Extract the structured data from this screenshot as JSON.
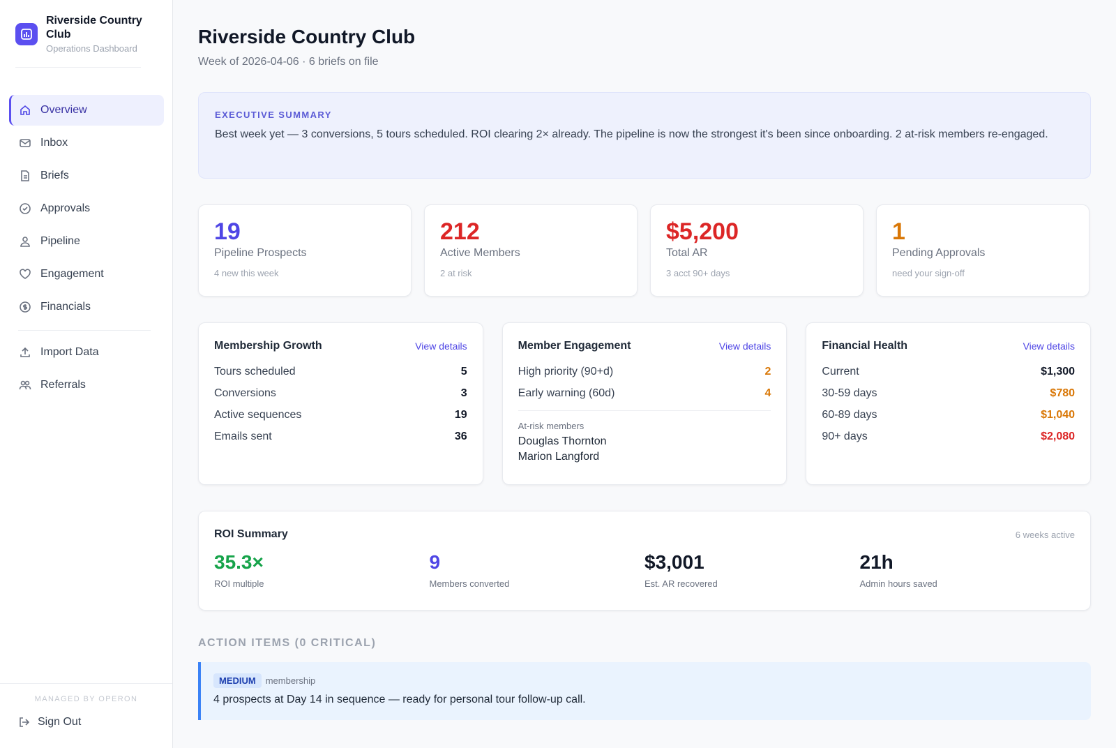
{
  "sidebar": {
    "brand": {
      "name": "Riverside Country Club",
      "subtitle": "Operations Dashboard"
    },
    "nav": [
      "Overview",
      "Inbox",
      "Briefs",
      "Approvals",
      "Pipeline",
      "Engagement",
      "Financials"
    ],
    "nav_secondary": [
      "Import Data",
      "Referrals"
    ],
    "footer": {
      "managed_by": "MANAGED BY OPERON",
      "sign_out": "Sign Out"
    }
  },
  "header": {
    "title": "Riverside Country Club",
    "subtitle": "Week of 2026-04-06 · 6 briefs on file"
  },
  "summary": {
    "label": "EXECUTIVE SUMMARY",
    "text": "Best week yet — 3 conversions, 5 tours scheduled. ROI clearing 2× already. The pipeline is now the strongest it's been since onboarding. 2 at-risk members re-engaged."
  },
  "kpis": [
    {
      "value": "19",
      "label": "Pipeline Prospects",
      "note": "4 new this week",
      "color": "#4f46e5"
    },
    {
      "value": "212",
      "label": "Active Members",
      "note": "2 at risk",
      "color": "#dc2626"
    },
    {
      "value": "$5,200",
      "label": "Total AR",
      "note": "3 acct 90+ days",
      "color": "#dc2626"
    },
    {
      "value": "1",
      "label": "Pending Approvals",
      "note": "need your sign-off",
      "color": "#d97706"
    }
  ],
  "panels": [
    {
      "title": "Membership Growth",
      "link": "View details",
      "rows": [
        {
          "label": "Tours scheduled",
          "value": "5"
        },
        {
          "label": "Conversions",
          "value": "3"
        },
        {
          "label": "Active sequences",
          "value": "19"
        },
        {
          "label": "Emails sent",
          "value": "36"
        }
      ]
    },
    {
      "title": "Member Engagement",
      "link": "View details",
      "rows": [
        {
          "label": "High priority (90+d)",
          "value": "2",
          "color": "#d97706"
        },
        {
          "label": "Early warning (60d)",
          "value": "4",
          "color": "#d97706"
        }
      ],
      "at_risk": {
        "label": "At-risk members",
        "names": [
          "Douglas Thornton",
          "Marion Langford"
        ]
      }
    },
    {
      "title": "Financial Health",
      "link": "View details",
      "rows": [
        {
          "label": "Current",
          "value": "$1,300"
        },
        {
          "label": "30-59 days",
          "value": "$780",
          "color": "#d97706"
        },
        {
          "label": "60-89 days",
          "value": "$1,040",
          "color": "#d97706"
        },
        {
          "label": "90+ days",
          "value": "$2,080",
          "color": "#dc2626"
        }
      ]
    }
  ],
  "roi": {
    "title": "ROI Summary",
    "note": "6 weeks active",
    "metrics": [
      {
        "value": "35.3×",
        "label": "ROI multiple",
        "color": "#16a34a"
      },
      {
        "value": "9",
        "label": "Members converted",
        "color": "#4f46e5"
      },
      {
        "value": "$3,001",
        "label": "Est. AR recovered"
      },
      {
        "value": "21h",
        "label": "Admin hours saved"
      }
    ]
  },
  "actions": {
    "title": "ACTION ITEMS (0 CRITICAL)",
    "items": [
      {
        "priority": "MEDIUM",
        "category": "membership",
        "text": "4 prospects at Day 14 in sequence — ready for personal tour follow-up call."
      }
    ]
  }
}
